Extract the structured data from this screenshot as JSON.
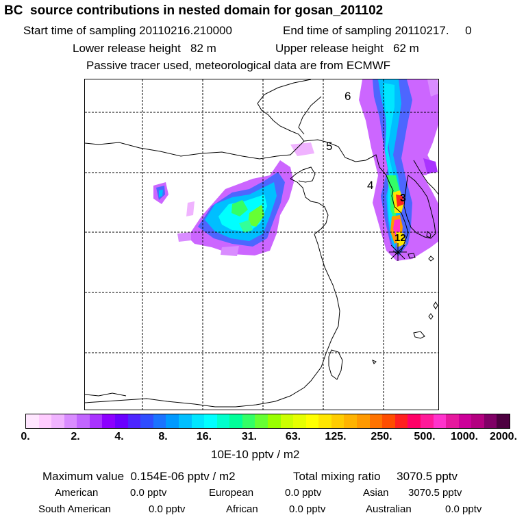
{
  "header": {
    "title": "BC  source contributions in nested domain for gosan_201102",
    "start_time": "Start time of sampling 20110216.210000",
    "end_time": "End time of sampling 20110217.     0",
    "lower_release": "Lower release height   82 m",
    "upper_release": "Upper release height   62 m",
    "tracer_note": "Passive tracer used, meteorological data are from ECMWF"
  },
  "map": {
    "day_labels": [
      "6",
      "5",
      "4",
      "3",
      "12"
    ],
    "colors": {
      "background": "#ffffff",
      "coastline": "#000000",
      "grid": "#000000",
      "low": "#cc66ff",
      "mid": "#4d66ff",
      "cyan": "#00ffff",
      "green": "#33ff66",
      "yellow": "#ffe600",
      "orange": "#ff9900",
      "red": "#ff2222",
      "magenta": "#ff33cc"
    }
  },
  "colorbar": {
    "colors": [
      "#ffe6ff",
      "#ffccff",
      "#f0b3ff",
      "#d98cff",
      "#c266ff",
      "#a933ff",
      "#8c00ff",
      "#6a00ff",
      "#4d26ff",
      "#2f4dff",
      "#1a73ff",
      "#0099ff",
      "#00bfff",
      "#00e6ff",
      "#00ffff",
      "#00ffcc",
      "#00ff99",
      "#33ff66",
      "#66ff33",
      "#99ff00",
      "#ccff00",
      "#e6ff00",
      "#ffff00",
      "#ffe600",
      "#ffcc00",
      "#ffb300",
      "#ff9900",
      "#ff7300",
      "#ff4d00",
      "#ff2020",
      "#ff0066",
      "#ff1a99",
      "#ff33cc",
      "#e6199e",
      "#cc0099",
      "#b30080",
      "#800066",
      "#4d0040"
    ],
    "tick_labels": [
      "0.",
      "2.",
      "4.",
      "8.",
      "16.",
      "31.",
      "63.",
      "125.",
      "250.",
      "500.",
      "1000.",
      "2000."
    ],
    "units": "10E-10 pptv / m2"
  },
  "stats": {
    "maximum": "Maximum value  0.154E-06 pptv / m2",
    "total": "Total mixing ratio     3070.5 pptv",
    "american_label": "American",
    "american_value": "0.0 pptv",
    "european_label": "European",
    "european_value": "0.0 pptv",
    "asian_label": "Asian",
    "asian_value": "3070.5 pptv",
    "south_american_label": "South American",
    "south_american_value": "0.0 pptv",
    "african_label": "African",
    "african_value": "0.0 pptv",
    "australian_label": "Australian",
    "australian_value": "0.0 pptv"
  }
}
